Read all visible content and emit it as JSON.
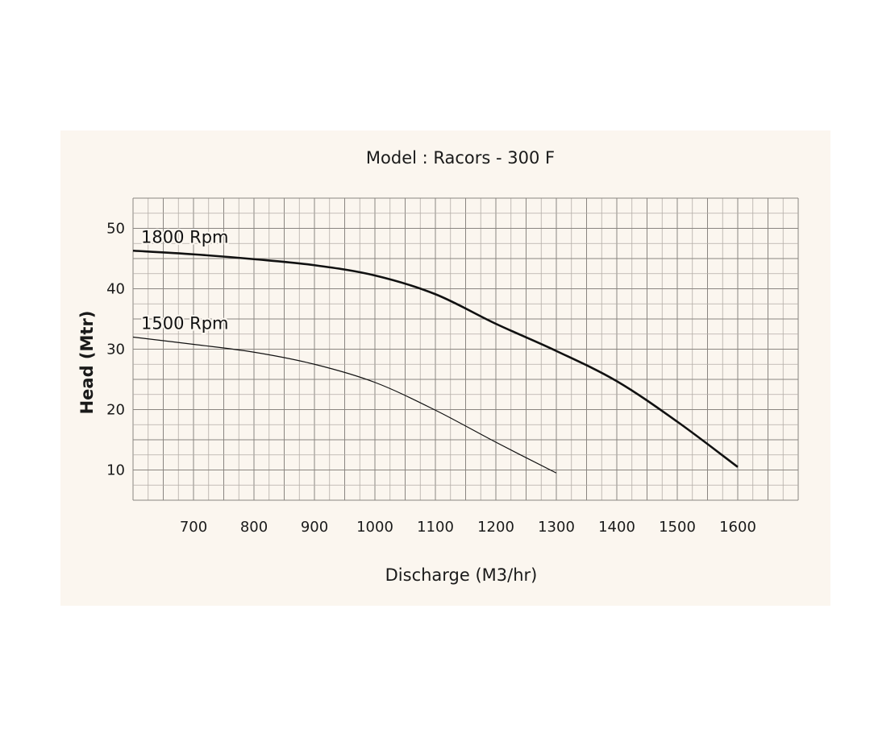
{
  "chart_data": {
    "type": "line",
    "title": "Model : Racors - 300 F",
    "xlabel": "Discharge (M3/hr)",
    "ylabel": "Head (Mtr)",
    "xlim": [
      600,
      1700
    ],
    "ylim": [
      5,
      55
    ],
    "xticks": [
      700,
      800,
      900,
      1000,
      1100,
      1200,
      1300,
      1400,
      1500,
      1600
    ],
    "yticks": [
      10,
      20,
      30,
      40,
      50
    ],
    "grid": true,
    "series": [
      {
        "name": "1800 Rpm",
        "x": [
          600,
          700,
          800,
          900,
          1000,
          1100,
          1200,
          1300,
          1400,
          1500,
          1600
        ],
        "y": [
          46.3,
          45.7,
          44.9,
          43.9,
          42.2,
          39.1,
          34.2,
          29.7,
          24.7,
          18.0,
          10.5
        ]
      },
      {
        "name": "1500 Rpm",
        "x": [
          600,
          700,
          800,
          900,
          1000,
          1100,
          1200,
          1300
        ],
        "y": [
          32.0,
          30.8,
          29.5,
          27.5,
          24.5,
          19.9,
          14.6,
          9.5
        ]
      }
    ]
  }
}
